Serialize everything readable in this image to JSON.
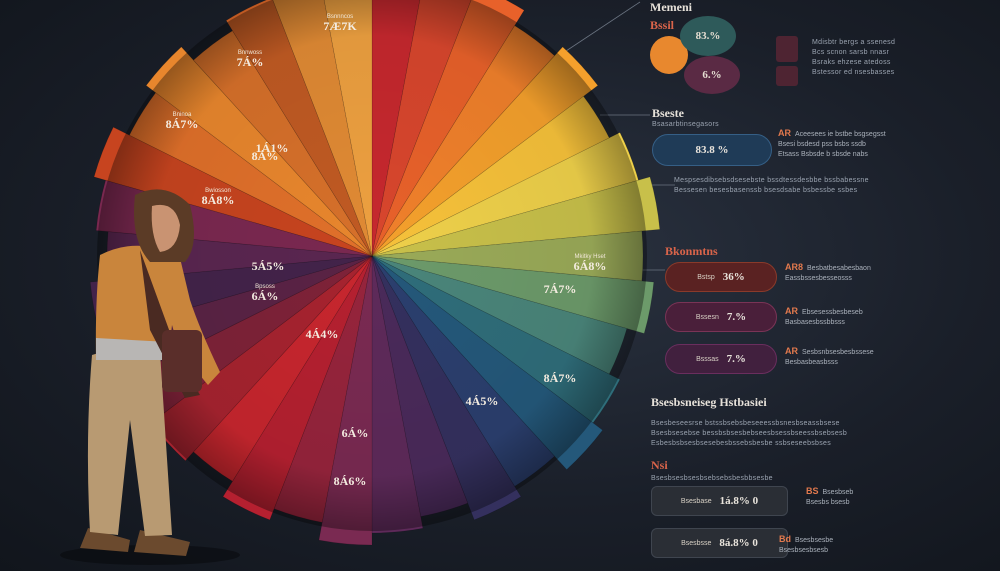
{
  "pie_labels": [
    {
      "pct": "7Æ7K",
      "cap": "Bsnnncos"
    },
    {
      "pct": "7Á%",
      "cap": "Bnnwoss"
    },
    {
      "pct": "8Á%",
      "cap": ""
    },
    {
      "pct": "8Á7%",
      "cap": "Bninoa"
    },
    {
      "pct": "1Á1%",
      "cap": ""
    },
    {
      "pct": "8Á8%",
      "cap": "Bwiosson"
    },
    {
      "pct": "5Á5%",
      "cap": ""
    },
    {
      "pct": "6Á%",
      "cap": "Bpsoss"
    },
    {
      "pct": "4Á4%",
      "cap": ""
    },
    {
      "pct": "6Á8%",
      "cap": "Mkitky Hset"
    },
    {
      "pct": "7Á7%",
      "cap": ""
    },
    {
      "pct": "8Á7%",
      "cap": ""
    },
    {
      "pct": "4Á5%",
      "cap": ""
    },
    {
      "pct": "6Á%",
      "cap": ""
    },
    {
      "pct": "8Á6%",
      "cap": ""
    }
  ],
  "sections": {
    "s1": {
      "title": "Memeni",
      "sub": "Bssil",
      "pct_a": "83.%",
      "pct_b": "6.%",
      "text": [
        "Mdisbtr bergs a ssenesd",
        "Bcs scnon sarsb nnasr",
        "Bsraks ehzese atedoss",
        "Bstessor ed nsesbasses"
      ]
    },
    "s2": {
      "title": "Bseste",
      "sub": "Bsasarbtinsegasors",
      "pill": "83.8 %",
      "side": {
        "num": "AR",
        "lines": [
          "Aceesees ie bstbe bsgsegsst",
          "Bsesi bsdesd pss bsbs ssdb",
          "Etsass Bsbsde b sbsde nabs"
        ]
      },
      "text": [
        "Mespsesdibsebsdsesebste bssdtessdesbbe bssbabessne",
        "Bessesen besesbasenssb bsesdsabe bsbessbe ssbes"
      ]
    },
    "s3": {
      "title": "Bkonmtns",
      "pills": [
        {
          "val": "36%",
          "cap": "Bstsp"
        },
        {
          "val": "7.%",
          "cap": "Bssesn"
        },
        {
          "val": "7.%",
          "cap": "Bsssas"
        }
      ],
      "side": [
        {
          "num": "AR8",
          "lines": [
            "Besbatbesabesbaon",
            "Eassbssesbesseosss"
          ]
        },
        {
          "num": "AR",
          "lines": [
            "Ebsesessbesbeseb",
            "Basbasesbssbbsss"
          ]
        },
        {
          "num": "AR",
          "lines": [
            "Sesbsnbsesbesbssese",
            "Besbasbeasbsss"
          ]
        }
      ]
    },
    "s4": {
      "title": "Bsesbsneiseg Hstbasiei",
      "text": [
        "Bsesbeseesrse bstssbsebsbeseeessbsnesbseassbsese",
        "Bsesbsesebse bessbsbsesbebseesbsessbseessbsebsesb",
        "Esbesbsbsesbsesebesbssebsbesbe ssbseseebsbses"
      ]
    },
    "s5": {
      "title": "Nsi",
      "sub": "Bsesbsesbsesbsebsebsbesbbsesbe",
      "pills": [
        {
          "val": "1á.8% 0",
          "cap": "Bsesbase"
        },
        {
          "val": "8á.8% 0",
          "cap": "Bsesbsse"
        }
      ],
      "side": [
        {
          "num": "BS",
          "lines": [
            "Bsesbseb",
            "Bsesbs bsesb"
          ]
        },
        {
          "num": "Bd",
          "lines": [
            "Bsesbsesbe",
            "Bsesbsesbsesb"
          ]
        }
      ]
    }
  },
  "colors": {
    "accent": "#d9644a",
    "bg": "#1a1f29",
    "panel_text": "#9aa3b0"
  }
}
